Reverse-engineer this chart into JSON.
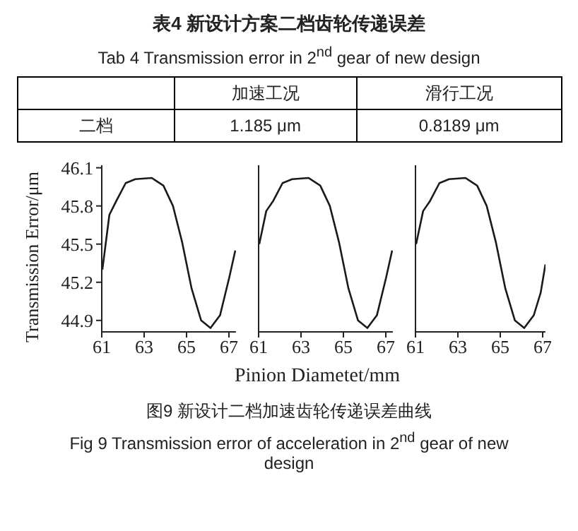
{
  "chart_data": [
    {
      "type": "line",
      "title": "表4 新设计方案二档齿轮传递误差",
      "subtitle": "Tab 4   Transmission error in 2$^{nd}$ gear of new design",
      "xlabel": "Pinion Diametet/mm",
      "ylabel": "Transmission Error/μm",
      "annotations": [
        "加速工况",
        "滑行工况",
        "二档",
        "1.185 μm",
        "0.8189 μm",
        "图9 新设计二档加速齿轮传递误差曲线",
        "Fig 9   Transmission error of acceleration in 2$^{nd}$ gear of new design"
      ],
      "x": [
        61.03,
        61.36,
        61.69,
        62.13,
        62.58,
        63.36,
        63.91,
        64.36,
        64.8,
        65.24,
        65.69,
        66.13,
        66.58,
        67.02,
        67.3
      ],
      "series": [
        {
          "color": "#1a1a1a",
          "values": [
            45.3,
            45.73,
            45.84,
            45.98,
            46.01,
            46.02,
            45.96,
            45.8,
            45.51,
            45.15,
            44.9,
            44.84,
            44.94,
            45.24,
            45.45
          ]
        }
      ],
      "xlim": [
        61,
        67.33
      ],
      "ylim": [
        44.81,
        46.12
      ],
      "xticks": [
        61,
        63,
        65,
        67
      ],
      "yticks": [
        44.9,
        45.2,
        45.5,
        45.8,
        46.1
      ],
      "marker": "none",
      "line_style": "solid"
    },
    {
      "type": "line",
      "x": [
        61.03,
        61.36,
        61.69,
        62.13,
        62.58,
        63.36,
        63.91,
        64.36,
        64.8,
        65.24,
        65.69,
        66.13,
        66.58,
        67.02,
        67.3
      ],
      "series": [
        {
          "color": "#1a1a1a",
          "values": [
            45.5,
            45.76,
            45.84,
            45.98,
            46.01,
            46.02,
            45.96,
            45.8,
            45.51,
            45.15,
            44.9,
            44.84,
            44.94,
            45.24,
            45.45
          ]
        }
      ],
      "xlim": [
        61,
        67.33
      ],
      "ylim": [
        44.81,
        46.12
      ],
      "xticks": [
        61,
        63,
        65,
        67
      ],
      "tick_labels": "x",
      "marker": "none",
      "line_style": "solid"
    },
    {
      "type": "line",
      "x": [
        61.03,
        61.36,
        61.69,
        62.13,
        62.58,
        63.36,
        63.91,
        64.36,
        64.8,
        65.24,
        65.69,
        66.13,
        66.58,
        66.91,
        67.13
      ],
      "series": [
        {
          "color": "#1a1a1a",
          "values": [
            45.5,
            45.76,
            45.84,
            45.98,
            46.01,
            46.02,
            45.96,
            45.8,
            45.51,
            45.15,
            44.9,
            44.84,
            44.94,
            45.12,
            45.34
          ]
        }
      ],
      "xlim": [
        61,
        67.13
      ],
      "ylim": [
        44.81,
        46.12
      ],
      "xticks": [
        61,
        63,
        65,
        67
      ],
      "tick_labels": "x",
      "marker": "none",
      "line_style": "solid"
    }
  ]
}
